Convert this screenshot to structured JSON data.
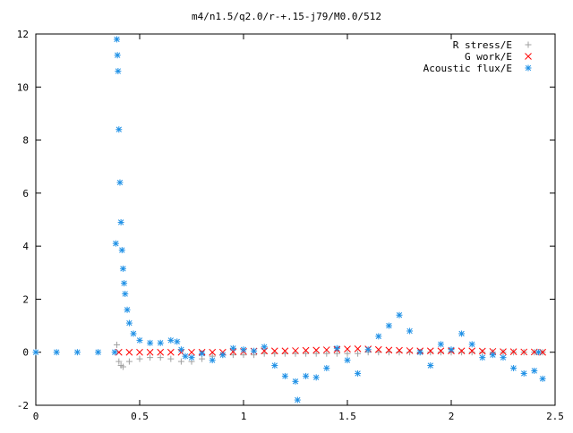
{
  "chart_data": {
    "type": "scatter",
    "title": "m4/n1.5/q2.0/r-+.15-j79/M0.0/512",
    "xlabel": "",
    "ylabel": "",
    "xlim": [
      0,
      2.5
    ],
    "ylim": [
      -2,
      12
    ],
    "xticks": [
      0,
      0.5,
      1,
      1.5,
      2,
      2.5
    ],
    "xtick_labels": [
      "0",
      "0.5",
      "1",
      "1.5",
      "2",
      "2.5"
    ],
    "yticks": [
      -2,
      0,
      2,
      4,
      6,
      8,
      10,
      12
    ],
    "ytick_labels": [
      "-2",
      "0",
      "2",
      "4",
      "6",
      "8",
      "10",
      "12"
    ],
    "grid": false,
    "legend_position": "top-right",
    "series": [
      {
        "name": "R stress/E",
        "marker": "plus",
        "color": "#a0a0a0",
        "x": [
          0.39,
          0.4,
          0.41,
          0.42,
          0.45,
          0.5,
          0.55,
          0.6,
          0.65,
          0.7,
          0.75,
          0.8,
          0.85,
          0.9,
          0.95,
          1.0,
          1.05,
          1.1,
          1.15,
          1.2,
          1.25,
          1.3,
          1.35,
          1.4,
          1.45,
          1.5,
          1.55,
          1.6,
          1.65,
          1.7,
          1.75,
          1.8,
          1.85,
          1.9,
          1.95,
          2.0,
          2.05,
          2.1,
          2.15,
          2.2,
          2.25,
          2.3,
          2.35,
          2.4,
          2.44
        ],
        "y": [
          0.28,
          -0.35,
          -0.5,
          -0.55,
          -0.35,
          -0.25,
          -0.2,
          -0.2,
          -0.25,
          -0.35,
          -0.35,
          -0.25,
          -0.15,
          -0.1,
          -0.1,
          -0.1,
          -0.1,
          -0.05,
          -0.05,
          -0.05,
          -0.05,
          -0.05,
          -0.05,
          -0.05,
          -0.05,
          -0.05,
          -0.05,
          0.0,
          0.0,
          0.0,
          0.0,
          0.0,
          0.0,
          0.0,
          0.0,
          0.0,
          0.0,
          0.0,
          0.0,
          0.0,
          0.0,
          0.0,
          0.0,
          0.0,
          0.0
        ]
      },
      {
        "name": "G work/E",
        "marker": "cross",
        "color": "#ff0000",
        "x": [
          0.4,
          0.45,
          0.5,
          0.55,
          0.6,
          0.65,
          0.7,
          0.75,
          0.8,
          0.85,
          0.9,
          0.95,
          1.0,
          1.05,
          1.1,
          1.15,
          1.2,
          1.25,
          1.3,
          1.35,
          1.4,
          1.45,
          1.5,
          1.55,
          1.6,
          1.65,
          1.7,
          1.75,
          1.8,
          1.85,
          1.9,
          1.95,
          2.0,
          2.05,
          2.1,
          2.15,
          2.2,
          2.25,
          2.3,
          2.35,
          2.4,
          2.44
        ],
        "y": [
          0.0,
          0.0,
          0.0,
          0.0,
          0.0,
          0.0,
          0.0,
          0.0,
          0.0,
          0.0,
          0.0,
          0.02,
          0.03,
          0.04,
          0.05,
          0.05,
          0.05,
          0.06,
          0.07,
          0.08,
          0.09,
          0.1,
          0.12,
          0.13,
          0.12,
          0.1,
          0.08,
          0.07,
          0.06,
          0.05,
          0.05,
          0.05,
          0.05,
          0.05,
          0.05,
          0.04,
          0.03,
          0.02,
          0.02,
          0.01,
          0.01,
          0.0
        ]
      },
      {
        "name": "Acoustic flux/E",
        "marker": "star",
        "color": "#1e90e6",
        "x": [
          0.0,
          0.1,
          0.2,
          0.3,
          0.38,
          0.385,
          0.39,
          0.393,
          0.396,
          0.4,
          0.405,
          0.41,
          0.415,
          0.42,
          0.425,
          0.43,
          0.44,
          0.45,
          0.47,
          0.5,
          0.55,
          0.6,
          0.65,
          0.68,
          0.7,
          0.72,
          0.75,
          0.8,
          0.85,
          0.9,
          0.95,
          1.0,
          1.05,
          1.1,
          1.15,
          1.2,
          1.25,
          1.26,
          1.3,
          1.35,
          1.4,
          1.45,
          1.5,
          1.55,
          1.6,
          1.65,
          1.7,
          1.75,
          1.8,
          1.85,
          1.9,
          1.95,
          2.0,
          2.05,
          2.1,
          2.15,
          2.2,
          2.25,
          2.3,
          2.35,
          2.4,
          2.42,
          2.44
        ],
        "y": [
          0.0,
          0.0,
          0.0,
          0.0,
          0.0,
          4.1,
          11.8,
          11.2,
          10.6,
          8.4,
          6.4,
          4.9,
          3.85,
          3.15,
          2.6,
          2.2,
          1.6,
          1.1,
          0.7,
          0.45,
          0.35,
          0.35,
          0.45,
          0.4,
          0.1,
          -0.15,
          -0.2,
          -0.05,
          -0.3,
          -0.1,
          0.15,
          0.1,
          0.05,
          0.2,
          -0.5,
          -0.9,
          -1.1,
          -1.8,
          -0.9,
          -0.95,
          -0.6,
          0.15,
          -0.3,
          -0.8,
          0.1,
          0.6,
          1.0,
          1.4,
          0.8,
          0.0,
          -0.5,
          0.3,
          0.1,
          0.7,
          0.3,
          -0.2,
          -0.1,
          -0.2,
          -0.6,
          -0.8,
          -0.7,
          0.0,
          -1.0
        ]
      }
    ]
  }
}
